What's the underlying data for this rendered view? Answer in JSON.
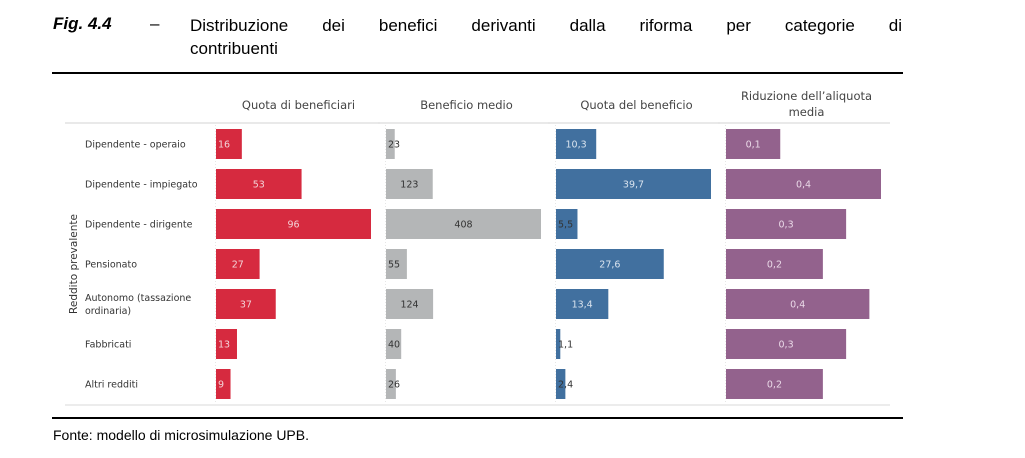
{
  "figure": {
    "label": "Fig. 4.4",
    "dash": "–",
    "title_line1": "Distribuzione dei benefici derivanti dalla riforma per categorie di",
    "title_line2": "contribuenti",
    "source": "Fonte: modello di microsimulazione UPB."
  },
  "chart_data": {
    "type": "bar",
    "orientation": "horizontal",
    "title": "Distribuzione dei benefici derivanti dalla riforma per categorie di contribuenti",
    "ylabel": "Reddito prevalente",
    "categories": [
      "Dipendente - operaio",
      "Dipendente - impiegato",
      "Dipendente - dirigente",
      "Pensionato",
      "Autonomo (tassazione ordinaria)",
      "Fabbricati",
      "Altri redditi"
    ],
    "category_lines": [
      [
        "Dipendente - operaio"
      ],
      [
        "Dipendente - impiegato"
      ],
      [
        "Dipendente - dirigente"
      ],
      [
        "Pensionato"
      ],
      [
        "Autonomo (tassazione",
        "ordinaria)"
      ],
      [
        "Fabbricati"
      ],
      [
        "Altri redditi"
      ]
    ],
    "grid": false,
    "series": [
      {
        "name": "Quota di beneficiari",
        "header_lines": [
          "Quota di beneficiari"
        ],
        "color": "#d62a3f",
        "label_color": "#f3d3d7",
        "values": [
          16,
          53,
          96,
          27,
          37,
          13,
          9
        ],
        "labels": [
          "16",
          "53",
          "96",
          "27",
          "37",
          "13",
          "9"
        ],
        "xlim": [
          0,
          96
        ]
      },
      {
        "name": "Beneficio medio",
        "header_lines": [
          "Beneficio medio"
        ],
        "color": "#b4b6b7",
        "label_color": "#333333",
        "values": [
          23,
          123,
          408,
          55,
          124,
          40,
          26
        ],
        "labels": [
          "23",
          "123",
          "408",
          "55",
          "124",
          "40",
          "26"
        ],
        "xlim": [
          0,
          408
        ]
      },
      {
        "name": "Quota del beneficio",
        "header_lines": [
          "Quota del beneficio"
        ],
        "color": "#41709f",
        "label_color": "#d9e3ee",
        "values": [
          10.3,
          39.7,
          5.5,
          27.6,
          13.4,
          1.1,
          2.4
        ],
        "labels": [
          "10,3",
          "39,7",
          "5,5",
          "27,6",
          "13,4",
          "1,1",
          "2,4"
        ],
        "xlim": [
          0,
          39.7
        ]
      },
      {
        "name": "Riduzione dell'aliquota media",
        "header_lines": [
          "Riduzione dell’aliquota",
          "media"
        ],
        "color": "#93628d",
        "label_color": "#ead9e8",
        "values": [
          0.14,
          0.4,
          0.31,
          0.25,
          0.37,
          0.31,
          0.25
        ],
        "labels": [
          "0,1",
          "0,4",
          "0,3",
          "0,2",
          "0,4",
          "0,3",
          "0,2"
        ],
        "xlim": [
          0,
          0.4
        ]
      }
    ]
  }
}
